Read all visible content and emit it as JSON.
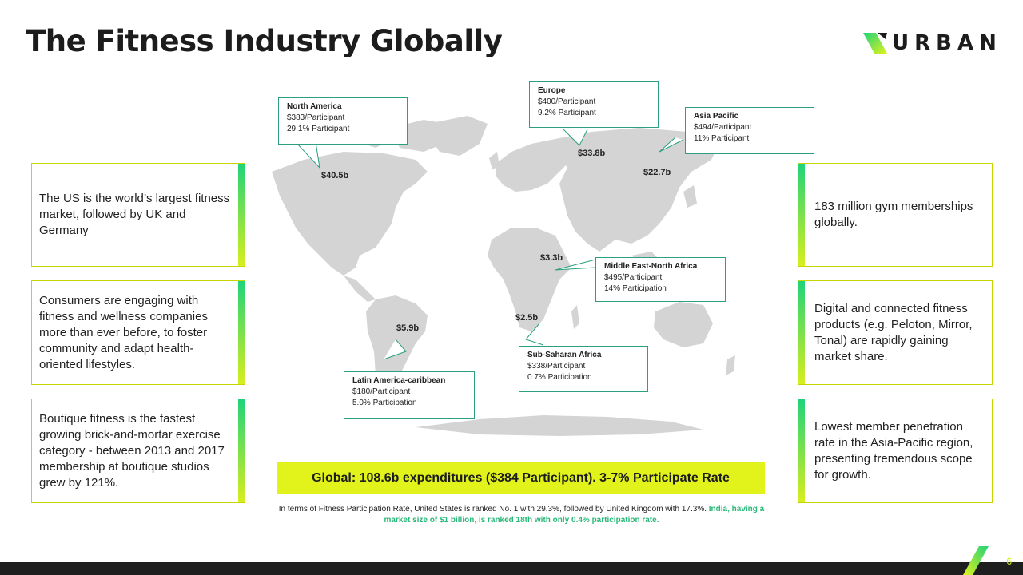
{
  "title": "The Fitness Industry Globally",
  "logo": {
    "text": "URBAN"
  },
  "cards_left": [
    "The US is the world’s largest fitness market, followed by UK and Germany",
    "Consumers are engaging with fitness and wellness companies more than ever before, to foster community and adapt health-oriented lifestyles.",
    "Boutique fitness is the fastest growing brick-and-mortar exercise category - between 2013 and 2017 membership at boutique studios grew by 121%."
  ],
  "cards_right": [
    "183 million gym memberships globally.",
    "Digital and connected fitness products (e.g. Peloton, Mirror, Tonal) are rapidly gaining market share.",
    "Lowest member penetration rate in the Asia-Pacific region, presenting tremendous scope for growth."
  ],
  "regions": {
    "north_america": {
      "name": "North America",
      "line1": "$383/Participant",
      "line2": "29.1% Participant",
      "value": "$40.5b"
    },
    "europe": {
      "name": "Europe",
      "line1": "$400/Participant",
      "line2": "9.2% Participant",
      "value": "$33.8b"
    },
    "asia_pacific": {
      "name": "Asia Pacific",
      "line1": "$494/Participant",
      "line2": "11% Participant",
      "value": "$22.7b"
    },
    "mena": {
      "name": "Middle East-North Africa",
      "line1": "$495/Participant",
      "line2": "14% Participation",
      "value": "$3.3b"
    },
    "ssa": {
      "name": "Sub-Saharan Africa",
      "line1": "$338/Participant",
      "line2": "0.7% Participation",
      "value": "$2.5b"
    },
    "latam": {
      "name": "Latin America-caribbean",
      "line1": "$180/Participant",
      "line2": "5.0% Participation",
      "value": "$5.9b"
    }
  },
  "global_banner": "Global: 108.6b expenditures ($384 Participant). 3-7% Participate Rate",
  "footnote": {
    "text": "In terms of Fitness Participation Rate, United States is ranked No. 1 with 29.3%, followed by United Kingdom with 17.3%.",
    "highlight": "India, having a market size of $1 billion, is ranked 18th with only 0.4% participation rate."
  },
  "page_number": "6",
  "colors": {
    "accent": "#e1f31b",
    "green": "#1fd37a",
    "teal": "#2aa080",
    "map": "#d4d4d4",
    "dark": "#1e1e1e"
  }
}
